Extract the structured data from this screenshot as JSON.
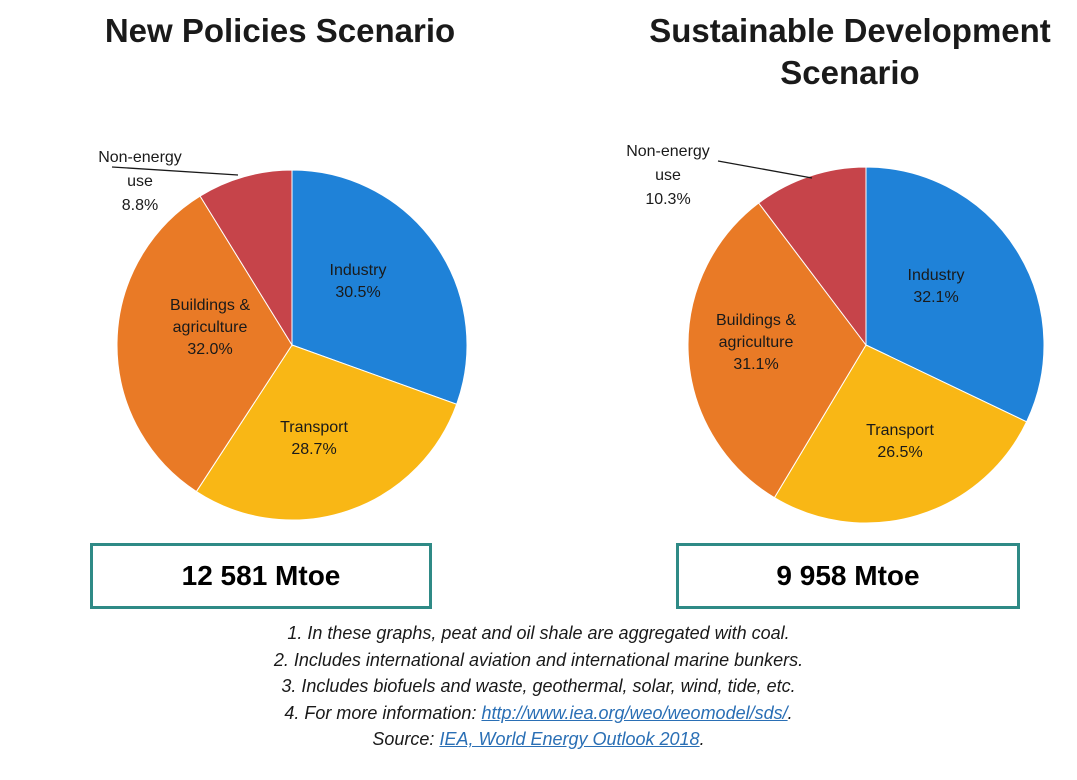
{
  "chart_data": [
    {
      "type": "pie",
      "title": "New Policies Scenario",
      "categories": [
        "Industry",
        "Transport",
        "Buildings & agriculture",
        "Non-energy use"
      ],
      "values": [
        30.5,
        28.7,
        32.0,
        8.8
      ],
      "value_labels": [
        "30.5%",
        "28.7%",
        "32.0%",
        "8.8%"
      ],
      "colors": [
        "#1f82d8",
        "#f9b715",
        "#e97a26",
        "#c6444a"
      ],
      "total": "12 581 Mtoe"
    },
    {
      "type": "pie",
      "title": "Sustainable Development Scenario",
      "categories": [
        "Industry",
        "Transport",
        "Buildings & agriculture",
        "Non-energy use"
      ],
      "values": [
        32.1,
        26.5,
        31.1,
        10.3
      ],
      "value_labels": [
        "32.1%",
        "26.5%",
        "31.1%",
        "10.3%"
      ],
      "colors": [
        "#1f82d8",
        "#f9b715",
        "#e97a26",
        "#c6444a"
      ],
      "total": "9 958 Mtoe"
    }
  ],
  "titles": {
    "left": "New Policies Scenario",
    "right_line1": "Sustainable Development",
    "right_line2": "Scenario"
  },
  "labels": {
    "industry": "Industry",
    "transport": "Transport",
    "buildings_line1": "Buildings &",
    "buildings_line2": "agriculture",
    "nonenergy_line1": "Non-energy",
    "nonenergy_line2": "use"
  },
  "notes": {
    "n1": "1. In these graphs, peat and oil shale are aggregated with coal.",
    "n2": "2. Includes international aviation and international marine bunkers.",
    "n3": "3. Includes biofuels and waste, geothermal, solar, wind, tide, etc.",
    "n4_prefix": "4. For more information: ",
    "n4_link": "http://www.iea.org/weo/weomodel/sds/",
    "n4_suffix": ".",
    "source_prefix": "Source: ",
    "source_link": "IEA, World Energy Outlook 2018",
    "source_suffix": "."
  }
}
